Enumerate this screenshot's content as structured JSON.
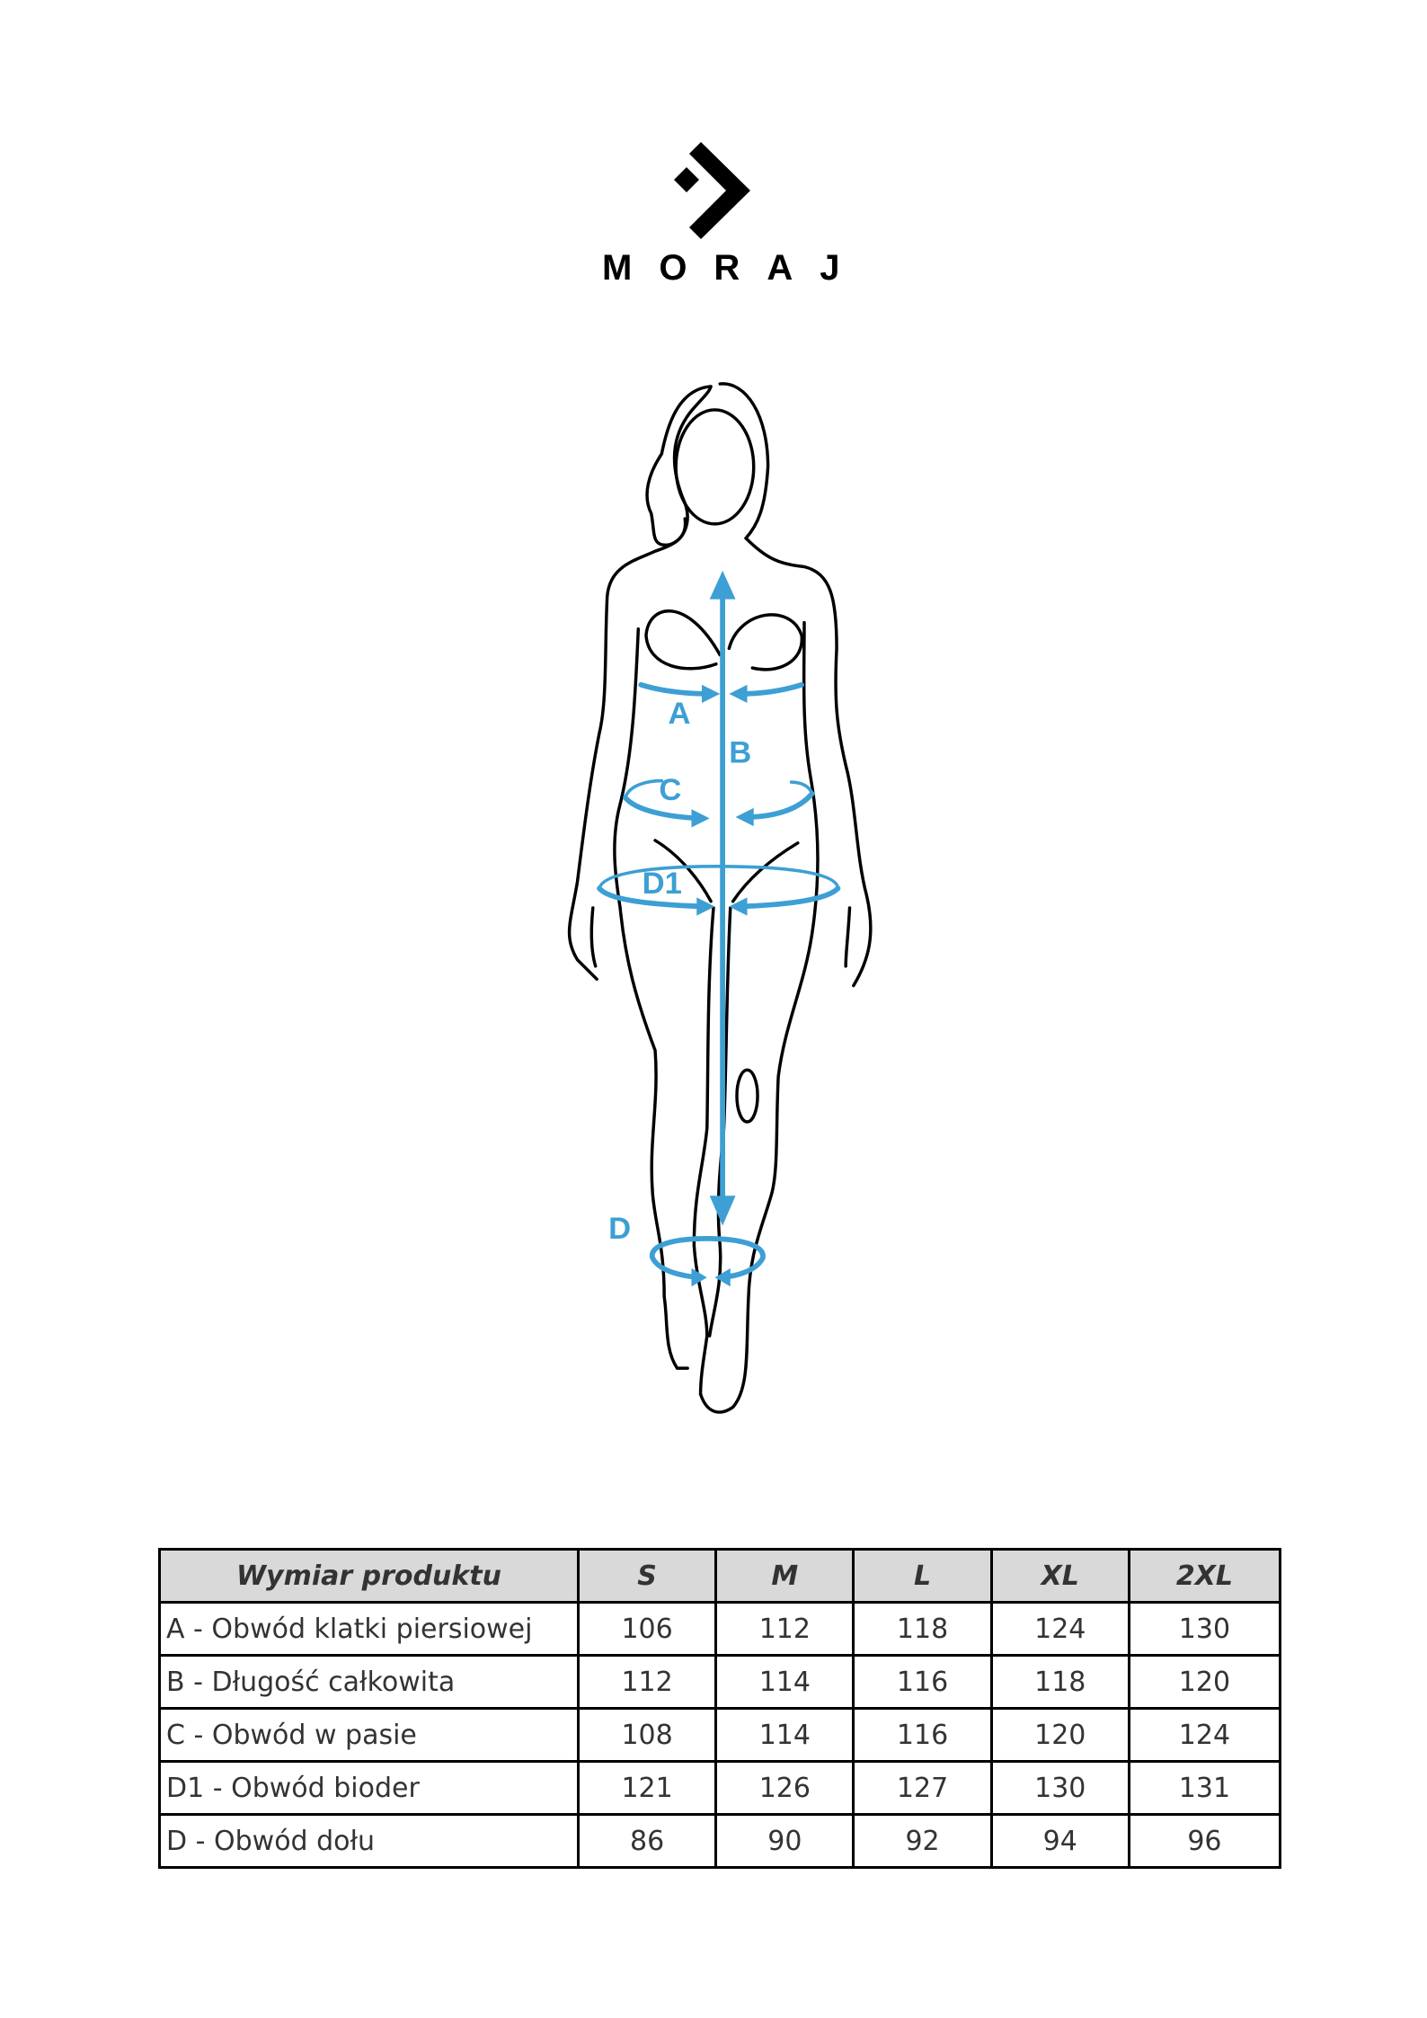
{
  "brand": {
    "name": "MORAJ"
  },
  "figure": {
    "accent_color": "#3d9fd4",
    "labels": {
      "A": "A",
      "B": "B",
      "C": "C",
      "D1": "D1",
      "D": "D"
    }
  },
  "table": {
    "headers": [
      "Wymiar produktu",
      "S",
      "M",
      "L",
      "XL",
      "2XL"
    ],
    "rows": [
      {
        "label": "A - Obwód klatki piersiowej",
        "values": [
          "106",
          "112",
          "118",
          "124",
          "130"
        ]
      },
      {
        "label": "B - Długość całkowita",
        "values": [
          "112",
          "114",
          "116",
          "118",
          "120"
        ]
      },
      {
        "label": "C - Obwód w pasie",
        "values": [
          "108",
          "114",
          "116",
          "120",
          "124"
        ]
      },
      {
        "label": "D1 - Obwód bioder",
        "values": [
          "121",
          "126",
          "127",
          "130",
          "131"
        ]
      },
      {
        "label": "D - Obwód dołu",
        "values": [
          "86",
          "90",
          "92",
          "94",
          "96"
        ]
      }
    ]
  }
}
